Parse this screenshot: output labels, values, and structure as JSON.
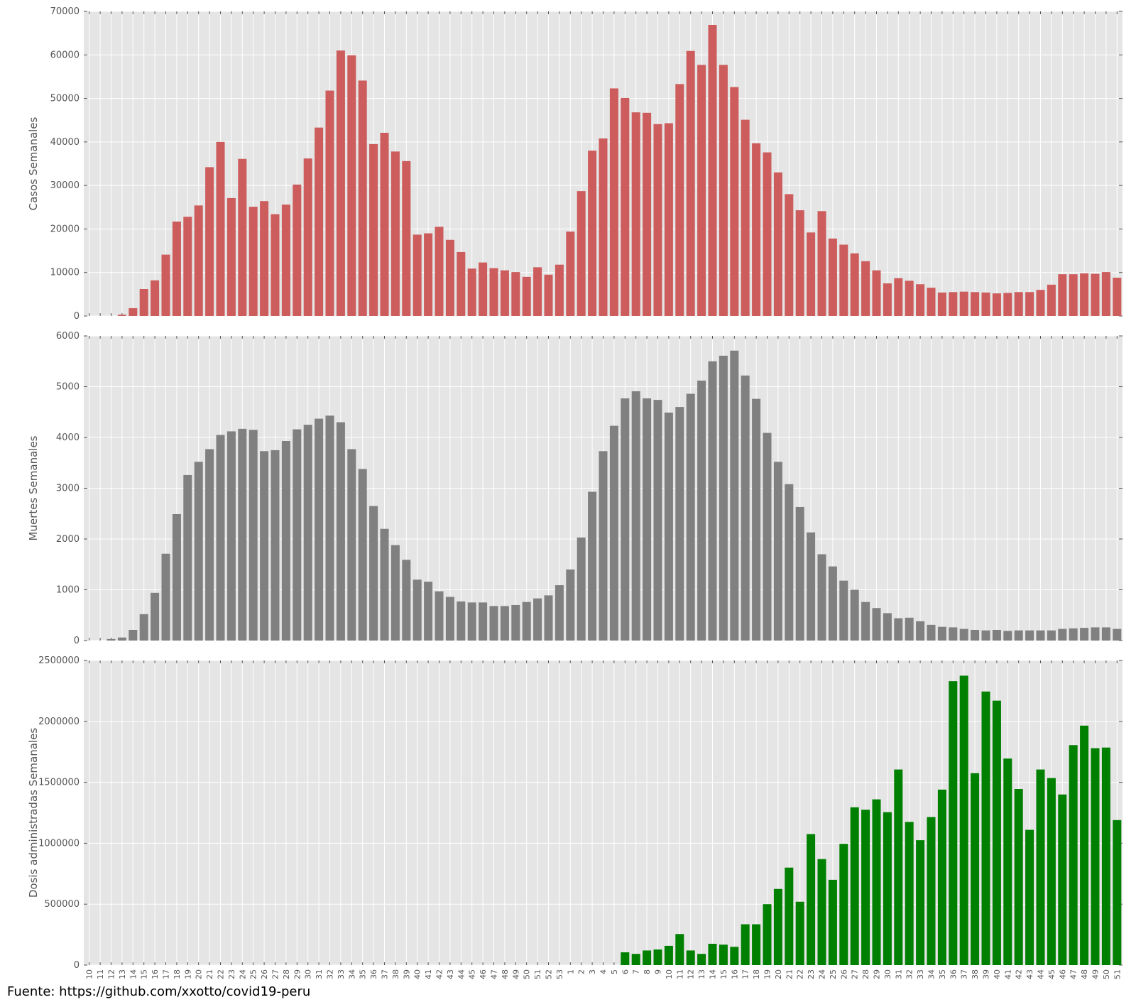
{
  "source_note": "Fuente: https://github.com/xxotto/covid19-peru",
  "x_tick_labels": [
    "10",
    "11",
    "12",
    "13",
    "14",
    "15",
    "16",
    "17",
    "18",
    "19",
    "20",
    "21",
    "22",
    "23",
    "24",
    "25",
    "26",
    "27",
    "28",
    "29",
    "30",
    "31",
    "32",
    "33",
    "34",
    "35",
    "36",
    "37",
    "38",
    "39",
    "40",
    "41",
    "42",
    "43",
    "44",
    "45",
    "46",
    "47",
    "48",
    "49",
    "50",
    "51",
    "52",
    "53",
    "1",
    "2",
    "3",
    "4",
    "5",
    "6",
    "7",
    "8",
    "9",
    "10",
    "11",
    "12",
    "13",
    "14",
    "15",
    "16",
    "17",
    "18",
    "19",
    "20",
    "21",
    "22",
    "23",
    "24",
    "25",
    "26",
    "27",
    "28",
    "29",
    "30",
    "31",
    "32",
    "33",
    "34",
    "35",
    "36",
    "37",
    "38",
    "39",
    "40",
    "41",
    "42",
    "43",
    "44",
    "45",
    "46",
    "47",
    "48",
    "49",
    "50",
    "51"
  ],
  "chart_data": [
    {
      "type": "bar",
      "ylabel": "Casos Semanales",
      "color": "#cd5c5c",
      "ylim": [
        0,
        70000
      ],
      "yticks": [
        0,
        10000,
        20000,
        30000,
        40000,
        50000,
        60000,
        70000
      ],
      "grid": true,
      "values": [
        0,
        0,
        0,
        300,
        1800,
        6200,
        8200,
        14100,
        21700,
        22800,
        25400,
        34200,
        40000,
        27100,
        36100,
        25100,
        26400,
        23400,
        25600,
        30200,
        36200,
        43300,
        51800,
        61000,
        59900,
        54100,
        39500,
        42100,
        37800,
        35600,
        18700,
        19000,
        20500,
        17500,
        14700,
        10900,
        12300,
        11000,
        10500,
        10100,
        9000,
        11200,
        9500,
        11800,
        19400,
        28700,
        38000,
        40800,
        52300,
        50100,
        46800,
        46700,
        44100,
        44300,
        53300,
        60900,
        57700,
        66900,
        57700,
        52600,
        45100,
        39700,
        37600,
        33000,
        28000,
        24300,
        19200,
        24100,
        17800,
        16400,
        14400,
        12600,
        10500,
        7500,
        8700,
        8100,
        7300,
        6500,
        5400,
        5500,
        5600,
        5500,
        5400,
        5200,
        5300,
        5500,
        5500,
        6000,
        7200,
        9600,
        9600,
        9800,
        9700,
        10100,
        8800
      ]
    },
    {
      "type": "bar",
      "ylabel": "Muertes Semanales",
      "color": "#808080",
      "ylim": [
        0,
        6000
      ],
      "yticks": [
        0,
        1000,
        2000,
        3000,
        4000,
        5000,
        6000
      ],
      "grid": true,
      "values": [
        0,
        0,
        30,
        60,
        210,
        520,
        940,
        1710,
        2490,
        3260,
        3520,
        3770,
        4050,
        4120,
        4170,
        4150,
        3730,
        3750,
        3930,
        4160,
        4250,
        4370,
        4430,
        4300,
        3770,
        3380,
        2650,
        2200,
        1880,
        1590,
        1200,
        1160,
        970,
        860,
        770,
        750,
        750,
        680,
        680,
        700,
        760,
        830,
        890,
        1090,
        1400,
        2030,
        2930,
        3730,
        4230,
        4770,
        4910,
        4770,
        4740,
        4490,
        4600,
        4860,
        5120,
        5500,
        5610,
        5710,
        5220,
        4760,
        4090,
        3520,
        3080,
        2630,
        2130,
        1700,
        1460,
        1180,
        1000,
        760,
        640,
        540,
        440,
        450,
        380,
        310,
        270,
        260,
        230,
        210,
        200,
        210,
        190,
        200,
        200,
        200,
        200,
        230,
        240,
        250,
        260,
        260,
        230
      ]
    },
    {
      "type": "bar",
      "ylabel": "Dosis administradas Semanales",
      "color": "#008000",
      "ylim": [
        0,
        2500000
      ],
      "yticks": [
        0,
        500000,
        1000000,
        1500000,
        2000000,
        2500000
      ],
      "grid": true,
      "values": [
        0,
        0,
        0,
        0,
        0,
        0,
        0,
        0,
        0,
        0,
        0,
        0,
        0,
        0,
        0,
        0,
        0,
        0,
        0,
        0,
        0,
        0,
        0,
        0,
        0,
        0,
        0,
        0,
        0,
        0,
        0,
        0,
        0,
        0,
        0,
        0,
        0,
        0,
        0,
        0,
        0,
        0,
        0,
        0,
        0,
        0,
        0,
        0,
        0,
        105000,
        92000,
        120000,
        128000,
        158000,
        255000,
        120000,
        92000,
        175000,
        168000,
        150000,
        335000,
        335000,
        500000,
        625000,
        800000,
        520000,
        1075000,
        870000,
        700000,
        995000,
        1295000,
        1275000,
        1360000,
        1255000,
        1605000,
        1175000,
        1025000,
        1215000,
        1440000,
        2330000,
        2375000,
        1575000,
        2245000,
        2170000,
        1695000,
        1445000,
        1110000,
        1605000,
        1535000,
        1400000,
        1805000,
        1965000,
        1780000,
        1785000,
        1190000
      ]
    }
  ]
}
